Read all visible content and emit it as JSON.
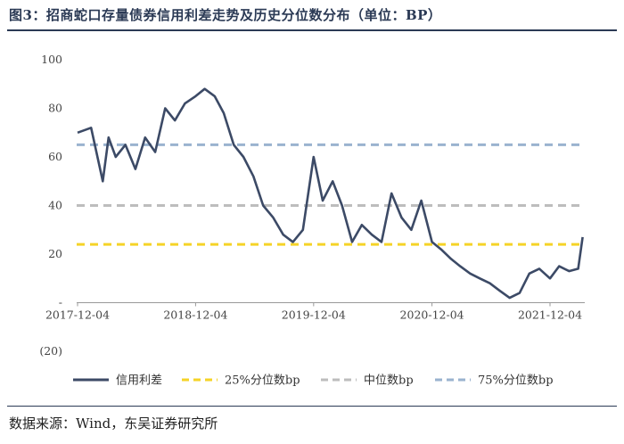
{
  "header": {
    "title": "图3：招商蛇口存量债券信用利差走势及历史分位数分布（单位：BP）"
  },
  "footer": {
    "source": "数据来源：Wind，东吴证券研究所"
  },
  "colors": {
    "spread": "#3c4a66",
    "p25": "#f5d327",
    "median": "#bdbdbd",
    "p75": "#9ab3cf",
    "axis": "#999999"
  },
  "chart_data": {
    "type": "line",
    "title": "",
    "xlabel": "",
    "ylabel": "",
    "ylim": [
      -20,
      100
    ],
    "y_ticks": [
      "100",
      "80",
      "60",
      "40",
      "20",
      "-",
      "(20)"
    ],
    "x_ticks": [
      "2017-12-04",
      "2018-12-04",
      "2019-12-04",
      "2020-12-04",
      "2021-12-04"
    ],
    "x_range": [
      "2017-12-04",
      "2022-03-15"
    ],
    "series": [
      {
        "name": "信用利差",
        "type": "line",
        "x": [
          "2017-12-04",
          "2018-01-15",
          "2018-02-20",
          "2018-03-10",
          "2018-04-01",
          "2018-05-01",
          "2018-06-01",
          "2018-07-01",
          "2018-08-01",
          "2018-09-01",
          "2018-10-01",
          "2018-11-01",
          "2018-12-04",
          "2019-01-01",
          "2019-02-01",
          "2019-03-01",
          "2019-04-01",
          "2019-05-01",
          "2019-06-01",
          "2019-07-01",
          "2019-08-01",
          "2019-09-01",
          "2019-10-01",
          "2019-11-01",
          "2019-12-04",
          "2020-01-01",
          "2020-02-01",
          "2020-03-01",
          "2020-04-01",
          "2020-05-01",
          "2020-06-01",
          "2020-07-01",
          "2020-08-01",
          "2020-09-01",
          "2020-10-01",
          "2020-11-01",
          "2020-12-04",
          "2021-01-01",
          "2021-02-01",
          "2021-03-01",
          "2021-04-01",
          "2021-05-01",
          "2021-06-01",
          "2021-07-01",
          "2021-08-01",
          "2021-09-01",
          "2021-10-01",
          "2021-11-01",
          "2021-12-04",
          "2022-01-01",
          "2022-02-01",
          "2022-03-01",
          "2022-03-15"
        ],
        "y": [
          70,
          72,
          50,
          68,
          60,
          65,
          55,
          68,
          62,
          80,
          75,
          82,
          85,
          88,
          85,
          78,
          65,
          60,
          52,
          40,
          35,
          28,
          25,
          30,
          60,
          42,
          50,
          40,
          25,
          32,
          28,
          25,
          45,
          35,
          30,
          42,
          25,
          22,
          18,
          15,
          12,
          10,
          8,
          5,
          2,
          4,
          12,
          14,
          10,
          15,
          13,
          14,
          27
        ]
      },
      {
        "name": "25%分位数bp",
        "value": 24
      },
      {
        "name": "中位数bp",
        "value": 40
      },
      {
        "name": "75%分位数bp",
        "value": 65
      }
    ],
    "legend_position": "bottom"
  }
}
